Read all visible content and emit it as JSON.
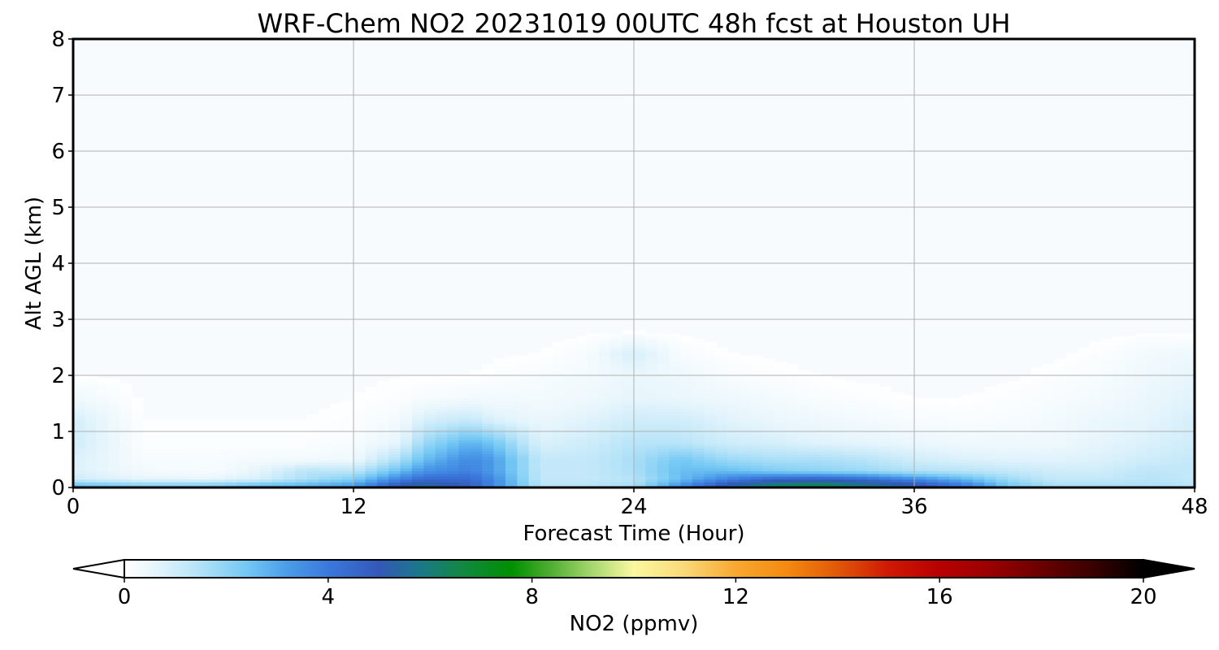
{
  "chart_data": {
    "type": "heatmap",
    "subtype": "filled-contour time-height cross section",
    "title": "WRF-Chem NO2  20231019 00UTC 48h fcst at Houston UH",
    "xlabel": "Forecast Time (Hour)",
    "ylabel": "Alt AGL (km)",
    "xlim": [
      0,
      48
    ],
    "ylim": [
      0,
      8
    ],
    "xticks": [
      "0",
      "12",
      "24",
      "36",
      "48"
    ],
    "xtick_values": [
      0,
      12,
      24,
      36,
      48
    ],
    "yticks": [
      "0",
      "1",
      "2",
      "3",
      "4",
      "5",
      "6",
      "7",
      "8"
    ],
    "ytick_values": [
      0,
      1,
      2,
      3,
      4,
      5,
      6,
      7,
      8
    ],
    "grid": true,
    "x": [
      0,
      3,
      6,
      8,
      10,
      12,
      14,
      15,
      17,
      18,
      20,
      22,
      24,
      26,
      28,
      30,
      32,
      34,
      36,
      38,
      40,
      42,
      44,
      46,
      48
    ],
    "y": [
      0.05,
      0.15,
      0.3,
      0.5,
      0.8,
      1.2,
      1.6,
      2.0,
      2.4
    ],
    "z": [
      [
        2.6,
        2.2,
        2.2,
        2.6,
        2.8,
        3.2,
        5.0,
        5.6,
        4.8,
        3.6,
        1.4,
        1.4,
        1.6,
        3.4,
        5.2,
        6.2,
        6.5,
        5.8,
        5.2,
        4.0,
        2.4,
        1.6,
        1.6,
        1.6,
        1.4
      ],
      [
        1.0,
        0.6,
        0.6,
        0.9,
        1.6,
        2.2,
        3.8,
        4.4,
        4.4,
        3.6,
        1.2,
        1.2,
        1.4,
        2.6,
        3.8,
        4.6,
        4.8,
        4.4,
        3.6,
        2.8,
        1.8,
        1.2,
        1.2,
        1.4,
        1.2
      ],
      [
        0.8,
        0.3,
        0.2,
        0.6,
        1.4,
        1.3,
        2.6,
        3.4,
        3.8,
        3.2,
        1.2,
        1.2,
        1.6,
        2.6,
        2.6,
        2.2,
        2.0,
        1.8,
        1.5,
        1.4,
        1.2,
        1.0,
        1.0,
        1.3,
        1.2
      ],
      [
        0.8,
        0.2,
        0.2,
        0.3,
        0.3,
        0.4,
        1.6,
        2.6,
        3.6,
        3.2,
        1.2,
        1.2,
        1.6,
        2.4,
        1.8,
        1.6,
        1.6,
        1.4,
        1.0,
        0.8,
        0.7,
        0.7,
        0.8,
        1.0,
        1.2
      ],
      [
        1.0,
        0.1,
        0.1,
        0.1,
        0.1,
        0.2,
        0.6,
        1.8,
        2.8,
        2.4,
        0.8,
        1.0,
        1.4,
        1.4,
        1.0,
        0.9,
        0.7,
        0.6,
        0.5,
        0.4,
        0.4,
        0.4,
        0.6,
        0.8,
        1.0
      ],
      [
        0.9,
        0.05,
        0.05,
        0.05,
        0.05,
        0.1,
        0.3,
        0.9,
        1.2,
        0.8,
        0.5,
        0.7,
        1.0,
        1.0,
        0.7,
        0.5,
        0.4,
        0.3,
        0.2,
        0.15,
        0.2,
        0.3,
        0.5,
        0.6,
        0.9
      ],
      [
        0.4,
        0.02,
        0.02,
        0.02,
        0.02,
        0.05,
        0.1,
        0.2,
        0.3,
        0.3,
        0.3,
        0.4,
        0.6,
        0.5,
        0.4,
        0.3,
        0.15,
        0.1,
        0.05,
        0.05,
        0.1,
        0.2,
        0.3,
        0.5,
        0.7
      ],
      [
        0.05,
        0.0,
        0.0,
        0.0,
        0.0,
        0.02,
        0.05,
        0.05,
        0.05,
        0.1,
        0.2,
        0.3,
        0.5,
        0.4,
        0.2,
        0.1,
        0.05,
        0.02,
        0.0,
        0.0,
        0.02,
        0.1,
        0.2,
        0.4,
        0.6
      ],
      [
        0.0,
        0.0,
        0.0,
        0.0,
        0.0,
        0.0,
        0.0,
        0.0,
        0.0,
        0.02,
        0.05,
        0.2,
        0.9,
        0.2,
        0.05,
        0.02,
        0.0,
        0.0,
        0.0,
        0.0,
        0.0,
        0.02,
        0.1,
        0.3,
        0.4
      ]
    ],
    "colorbar": {
      "label": "NO2  (ppmv)",
      "ticks": [
        "0",
        "4",
        "8",
        "12",
        "16",
        "20"
      ],
      "tick_values": [
        0,
        4,
        8,
        12,
        16,
        20
      ],
      "range": [
        0,
        20
      ],
      "extend": "both",
      "orientation": "horizontal",
      "stops": [
        {
          "v": 0,
          "c": "#ffffff"
        },
        {
          "v": 0.6,
          "c": "#e6f5fc"
        },
        {
          "v": 1.4,
          "c": "#b8e4f8"
        },
        {
          "v": 2.4,
          "c": "#73c8f4"
        },
        {
          "v": 3.2,
          "c": "#4a9ce8"
        },
        {
          "v": 4.0,
          "c": "#3b78dc"
        },
        {
          "v": 5.0,
          "c": "#3358b8"
        },
        {
          "v": 5.8,
          "c": "#1a7888"
        },
        {
          "v": 6.6,
          "c": "#128844"
        },
        {
          "v": 7.6,
          "c": "#009000"
        },
        {
          "v": 8.4,
          "c": "#52b034"
        },
        {
          "v": 9.2,
          "c": "#a8d870"
        },
        {
          "v": 10.0,
          "c": "#fbf8a0"
        },
        {
          "v": 11.0,
          "c": "#fad878"
        },
        {
          "v": 12.0,
          "c": "#f8a830"
        },
        {
          "v": 13.0,
          "c": "#f48a10"
        },
        {
          "v": 14.0,
          "c": "#e05808"
        },
        {
          "v": 15.0,
          "c": "#d01804"
        },
        {
          "v": 16.0,
          "c": "#b80000"
        },
        {
          "v": 17.0,
          "c": "#9a0000"
        },
        {
          "v": 18.0,
          "c": "#6a0000"
        },
        {
          "v": 19.0,
          "c": "#3a0000"
        },
        {
          "v": 20.0,
          "c": "#000000"
        }
      ]
    }
  }
}
